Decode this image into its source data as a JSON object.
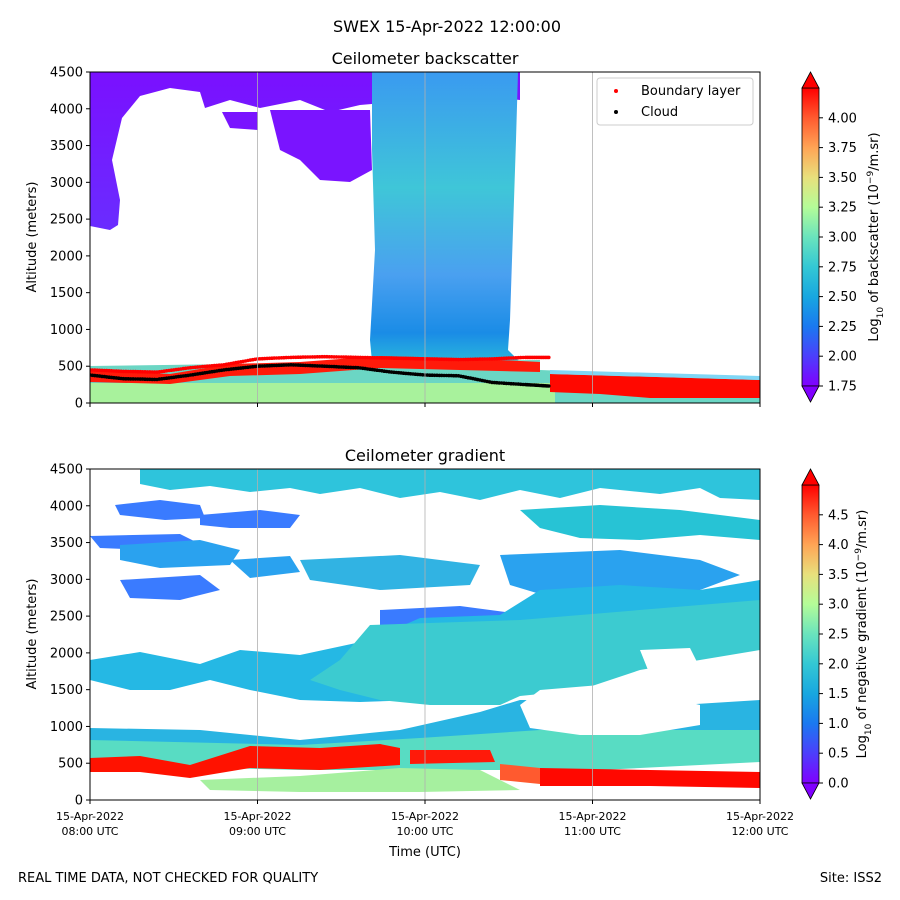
{
  "figure": {
    "suptitle": "SWEX 15-Apr-2022 12:00:00",
    "footer_left": "REAL TIME DATA, NOT CHECKED FOR QUALITY",
    "footer_right": "Site: ISS2"
  },
  "chart_data": [
    {
      "type": "heatmap",
      "title": "Ceilometer backscatter",
      "ylabel": "Altitude (meters)",
      "xlabel": "",
      "ylim": [
        0,
        4500
      ],
      "yticks": [
        0,
        500,
        1000,
        1500,
        2000,
        2500,
        3000,
        3500,
        4000,
        4500
      ],
      "xlim_hours": [
        8,
        12
      ],
      "xticks_hours": [
        8,
        9,
        10,
        11,
        12
      ],
      "xtick_labels": [],
      "grid": "x",
      "colorbar": {
        "label_prefix": "Log",
        "label_sub": "10",
        "label_mid": " of backscatter (10",
        "label_sup": "−9",
        "label_suffix": "/m.sr)",
        "ticks": [
          "1.75",
          "2.00",
          "2.25",
          "2.50",
          "2.75",
          "3.00",
          "3.25",
          "3.50",
          "3.75",
          "4.00"
        ],
        "range": [
          1.75,
          4.25
        ],
        "extend": "both"
      },
      "legend": {
        "position": "top-right",
        "entries": [
          {
            "label": "Boundary layer",
            "color": "#ff0000"
          },
          {
            "label": "Cloud",
            "color": "#000000"
          }
        ]
      },
      "series": [
        {
          "name": "Boundary layer",
          "x_hours": [
            8.0,
            8.2,
            8.4,
            8.6,
            8.8,
            9.0,
            9.2,
            9.4,
            9.6,
            9.8,
            10.0,
            10.2,
            10.4,
            10.6,
            10.75
          ],
          "altitude_m": [
            450,
            430,
            420,
            480,
            520,
            600,
            620,
            630,
            620,
            610,
            600,
            590,
            600,
            620,
            620
          ]
        },
        {
          "name": "Cloud",
          "x_hours": [
            8.0,
            8.2,
            8.4,
            8.6,
            8.8,
            9.0,
            9.2,
            9.4,
            9.6,
            9.8,
            10.0,
            10.2,
            10.4,
            10.6,
            10.75
          ],
          "altitude_m": [
            380,
            330,
            320,
            380,
            450,
            500,
            520,
            500,
            480,
            420,
            380,
            370,
            280,
            250,
            230
          ]
        }
      ]
    },
    {
      "type": "heatmap",
      "title": "Ceilometer gradient",
      "ylabel": "Altitude (meters)",
      "xlabel": "Time (UTC)",
      "ylim": [
        0,
        4500
      ],
      "yticks": [
        0,
        500,
        1000,
        1500,
        2000,
        2500,
        3000,
        3500,
        4000,
        4500
      ],
      "xlim_hours": [
        8,
        12
      ],
      "xticks_hours": [
        8,
        9,
        10,
        11,
        12
      ],
      "xtick_labels": [
        [
          "15-Apr-2022",
          "08:00 UTC"
        ],
        [
          "15-Apr-2022",
          "09:00 UTC"
        ],
        [
          "15-Apr-2022",
          "10:00 UTC"
        ],
        [
          "15-Apr-2022",
          "11:00 UTC"
        ],
        [
          "15-Apr-2022",
          "12:00 UTC"
        ]
      ],
      "grid": "x",
      "colorbar": {
        "label_prefix": "Log",
        "label_sub": "10",
        "label_mid": " of negative gradient (10",
        "label_sup": "−9",
        "label_suffix": "/m.sr)",
        "ticks": [
          "0.0",
          "0.5",
          "1.0",
          "1.5",
          "2.0",
          "2.5",
          "3.0",
          "3.5",
          "4.0",
          "4.5"
        ],
        "range": [
          0,
          5
        ],
        "extend": "both"
      }
    }
  ],
  "colors": {
    "rainbow": [
      "#8000ff",
      "#4c3ffc",
      "#1a79f0",
      "#18a7e0",
      "#4ccfcc",
      "#80ecb3",
      "#b4fc98",
      "#e8e07c",
      "#ffb45f",
      "#ff793f",
      "#ff3a1f",
      "#ff0000"
    ]
  }
}
